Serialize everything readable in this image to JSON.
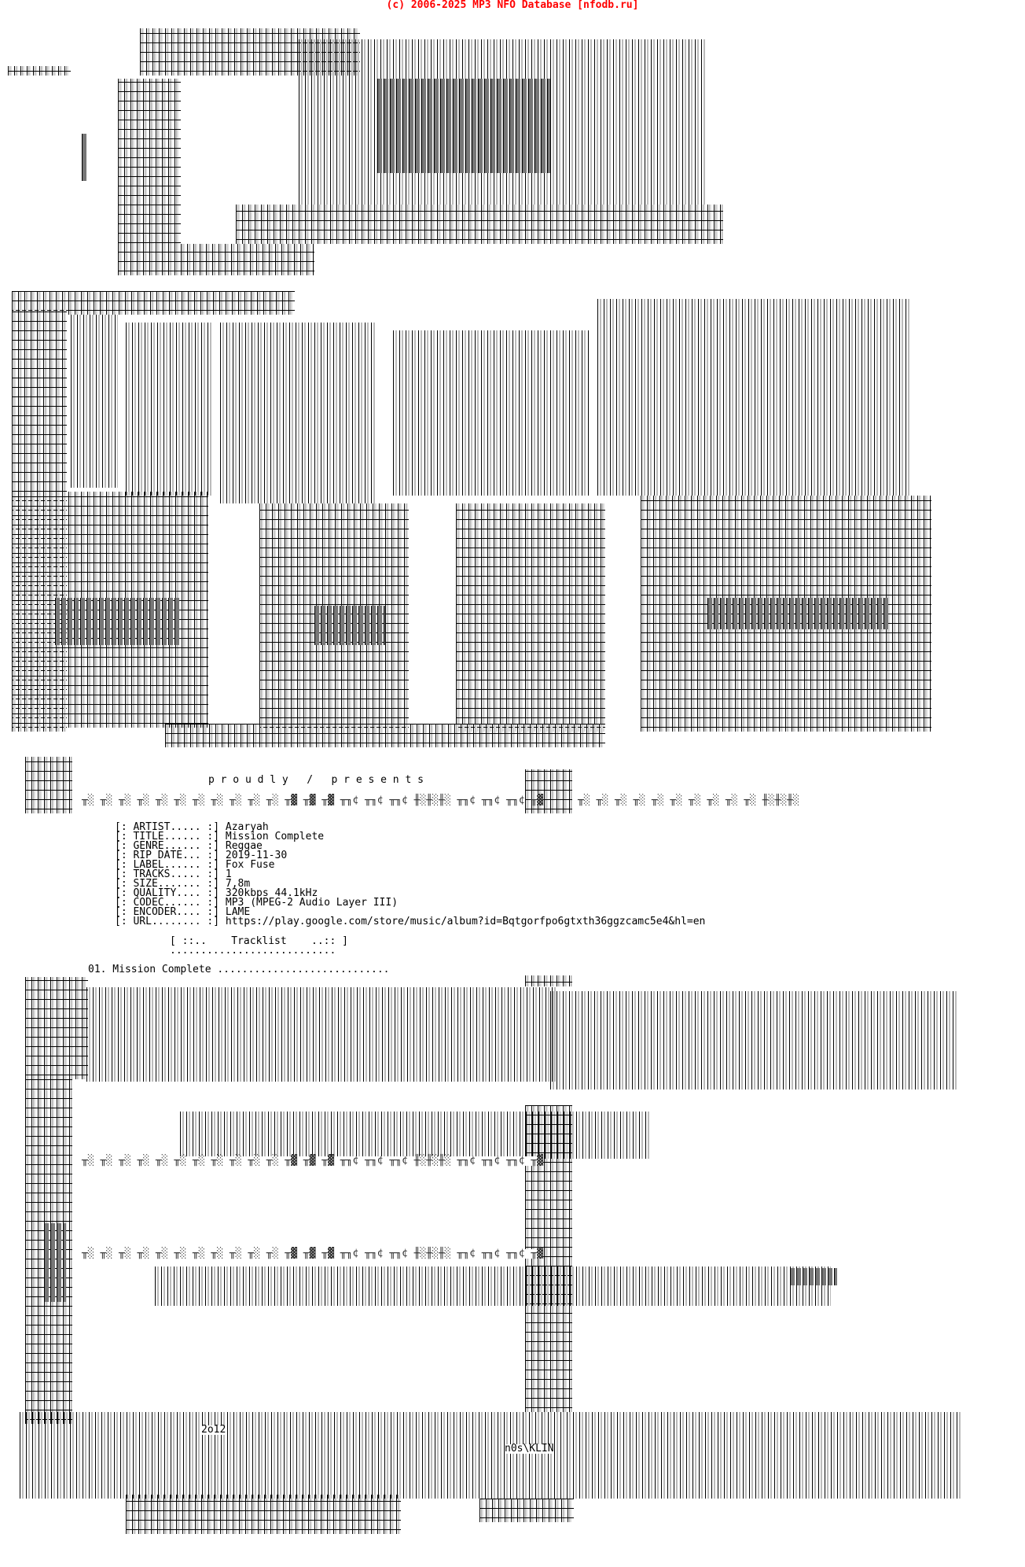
{
  "header": {
    "copyright": "(c) 2006-2025 MP3 NFO Database [nfodb.ru]"
  },
  "tagline": "p r o u d l y   /   p r e s e n t s",
  "info": [
    {
      "label": "[: ARTIST..... :]",
      "value": "Azaryah"
    },
    {
      "label": "[: TITLE...... :]",
      "value": "Mission Complete"
    },
    {
      "label": "[: GENRE...... :]",
      "value": "Reggae"
    },
    {
      "label": "[: RIP DATE... :]",
      "value": "2019-11-30"
    },
    {
      "label": "[: LABEL...... :]",
      "value": "Fox Fuse"
    },
    {
      "label": "[: TRACKS..... :]",
      "value": "1"
    },
    {
      "label": "[: SIZE....... :]",
      "value": "7,8m"
    },
    {
      "label": "[: QUALITY.... :]",
      "value": "320kbps 44.1kHz"
    },
    {
      "label": "[: CODEC...... :]",
      "value": "MP3 (MPEG-2 Audio Layer III)"
    },
    {
      "label": "[: ENCODER.... :]",
      "value": "LAME"
    },
    {
      "label": "[: URL........ :]",
      "value": "https://play.google.com/store/music/album?id=Bqtgorfpo6gtxth36ggzcamc5e4&hl=en"
    }
  ],
  "tracklist": {
    "header": "[ ::..    Tracklist    ..:: ]",
    "underline": "...........................",
    "tracks": [
      "01. Mission Complete ............................"
    ]
  },
  "art": {
    "glyph_row": "╥░ ╥░ ╥░ ╥░ ╥░ ╥░ ╥░ ╥░ ╥░ ╥░ ╥░ ╥▓ ╥▓ ╥▓ ╥╖¢ ╥╖¢ ╥╖¢ ╫░╫░╫░ ╥╖¢ ╥╖¢ ╥╖¢ ╥▓",
    "glyph_row_right": "╥░ ╥░ ╥░ ╥░ ╥░ ╥░ ╥░ ╥░ ╥░ ╥░ ╫░╫░╫░",
    "year": "2o12",
    "credit": "n0s\\KLIN"
  }
}
